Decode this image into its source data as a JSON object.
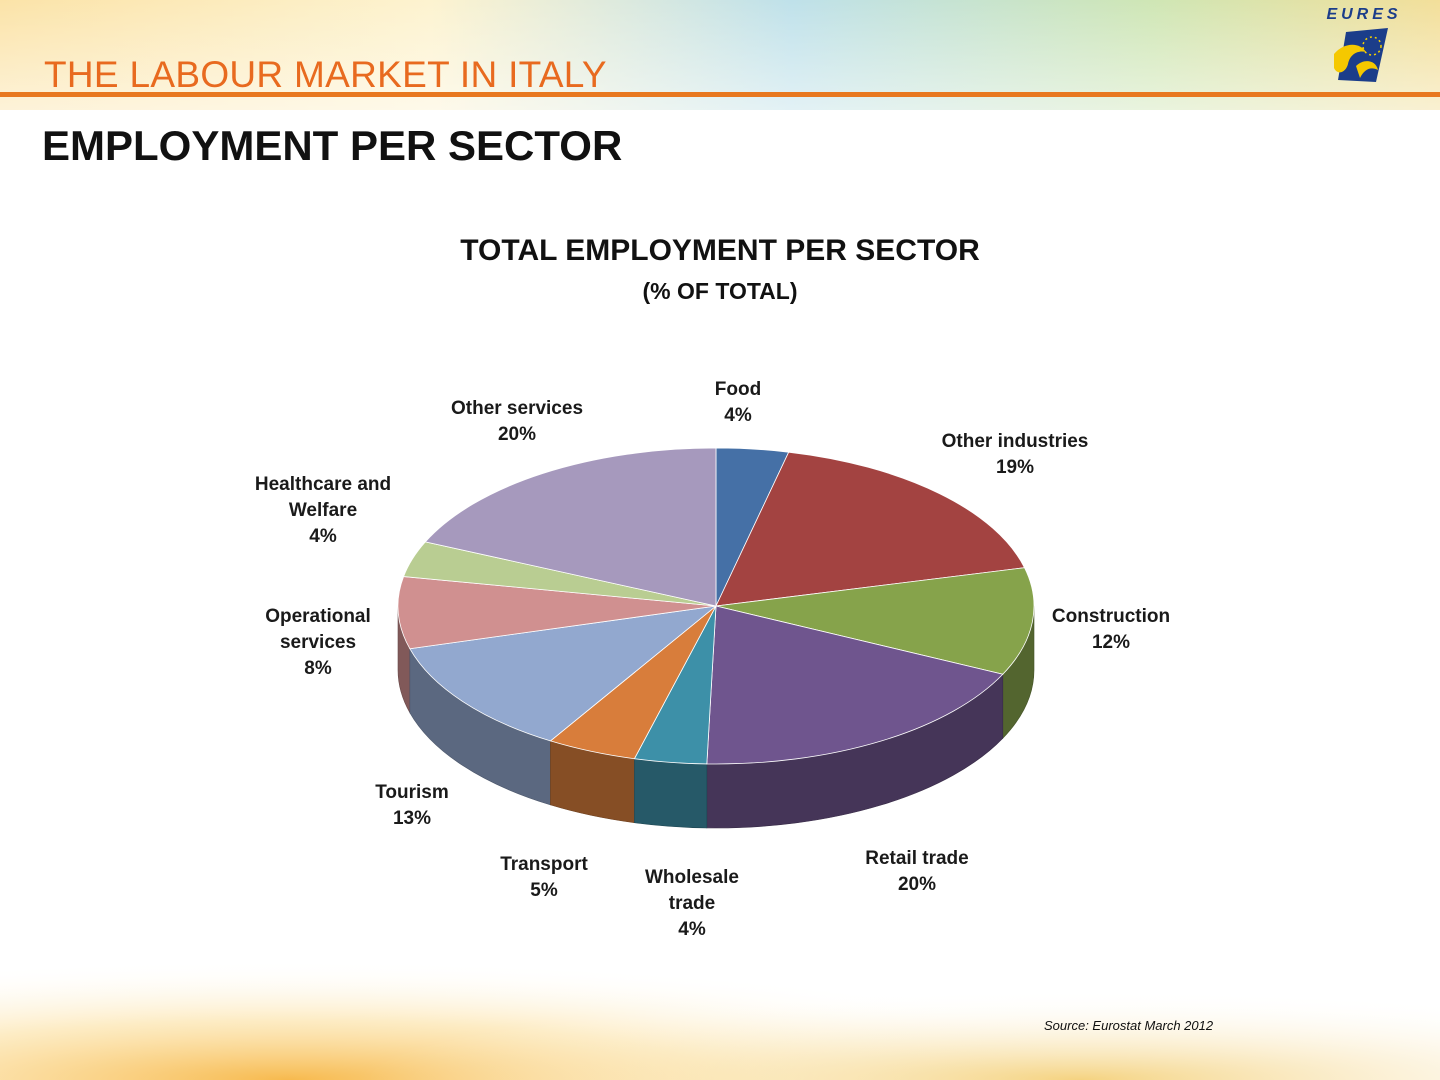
{
  "slide": {
    "deck_title": "THE LABOUR MARKET IN ITALY",
    "title": "EMPLOYMENT PER SECTOR",
    "logo_text": "EURES",
    "source": "Source: Eurostat March 2012"
  },
  "colors": {
    "accent": "#e8781f",
    "title_orange": "#e86a1f"
  },
  "chart_data": {
    "type": "pie",
    "title": "TOTAL EMPLOYMENT PER SECTOR",
    "subtitle": "(% OF TOTAL)",
    "unit": "%",
    "slices": [
      {
        "label": "Food",
        "value": 4,
        "display": "4%",
        "color": "#4570a6"
      },
      {
        "label": "Other industries",
        "value": 19,
        "display": "19%",
        "color": "#a34341"
      },
      {
        "label": "Construction",
        "value": 12,
        "display": "12%",
        "color": "#86a34b"
      },
      {
        "label": "Retail trade",
        "value": 20,
        "display": "20%",
        "color": "#6f558e"
      },
      {
        "label": "Wholesale trade",
        "value": 4,
        "display": "4%",
        "color": "#3d90a8"
      },
      {
        "label": "Transport",
        "value": 5,
        "display": "5%",
        "color": "#d87d3b"
      },
      {
        "label": "Tourism",
        "value": 13,
        "display": "13%",
        "color": "#92a8cf"
      },
      {
        "label": "Operational services",
        "value": 8,
        "display": "8%",
        "color": "#d09090"
      },
      {
        "label": "Healthcare and Welfare",
        "value": 4,
        "display": "4%",
        "color": "#b9cd92"
      },
      {
        "label": "Other services",
        "value": 20,
        "display": "20%",
        "color": "#a699bd"
      }
    ]
  }
}
